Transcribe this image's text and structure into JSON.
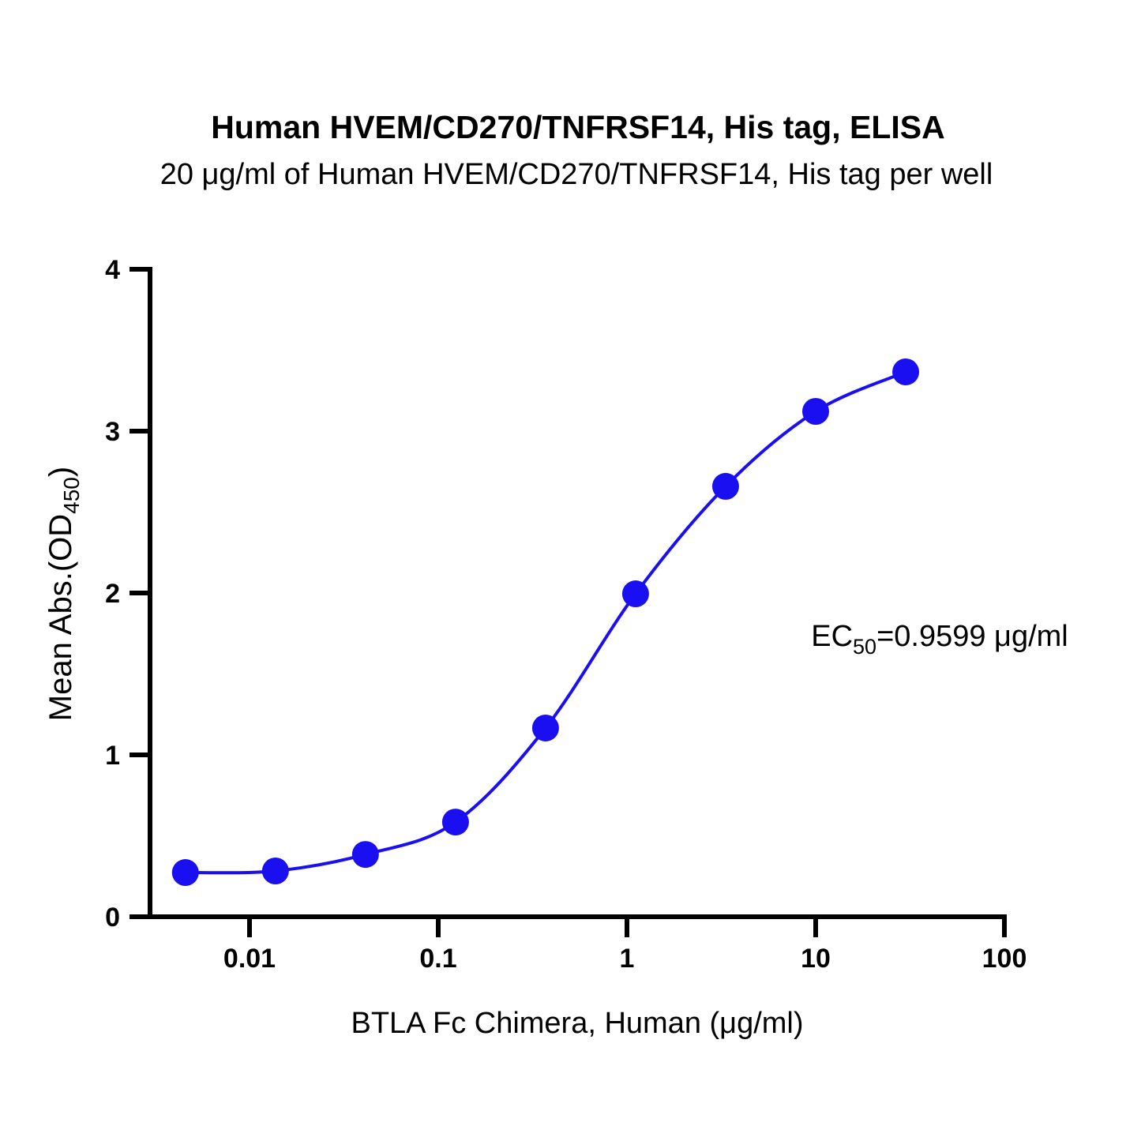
{
  "chart_data": {
    "type": "scatter",
    "title": "Human HVEM/CD270/TNFRSF14, His tag, ELISA",
    "subtitle": "20 μg/ml of Human HVEM/CD270/TNFRSF14, His tag per well",
    "x_label": "BTLA Fc Chimera, Human (μg/ml)",
    "y_label": {
      "main": "Mean Abs.(OD",
      "sub": "450",
      "end": ")"
    },
    "annotation": {
      "main": "EC",
      "sub": "50",
      "end": "=0.9599 μg/ml"
    },
    "xscale": "log",
    "xlim": [
      0.00297,
      100
    ],
    "xticks": [
      0.01,
      0.1,
      1,
      10,
      100
    ],
    "ylim": [
      0,
      4
    ],
    "yticks": [
      0,
      1,
      2,
      3,
      4
    ],
    "series": [
      {
        "color": "#1a0ff0",
        "x": [
          0.004572,
          0.01372,
          0.04115,
          0.1235,
          0.3704,
          1.111,
          3.333,
          10,
          30
        ],
        "values": [
          0.273,
          0.283,
          0.385,
          0.585,
          1.166,
          1.995,
          2.659,
          3.122,
          3.366
        ]
      }
    ]
  }
}
